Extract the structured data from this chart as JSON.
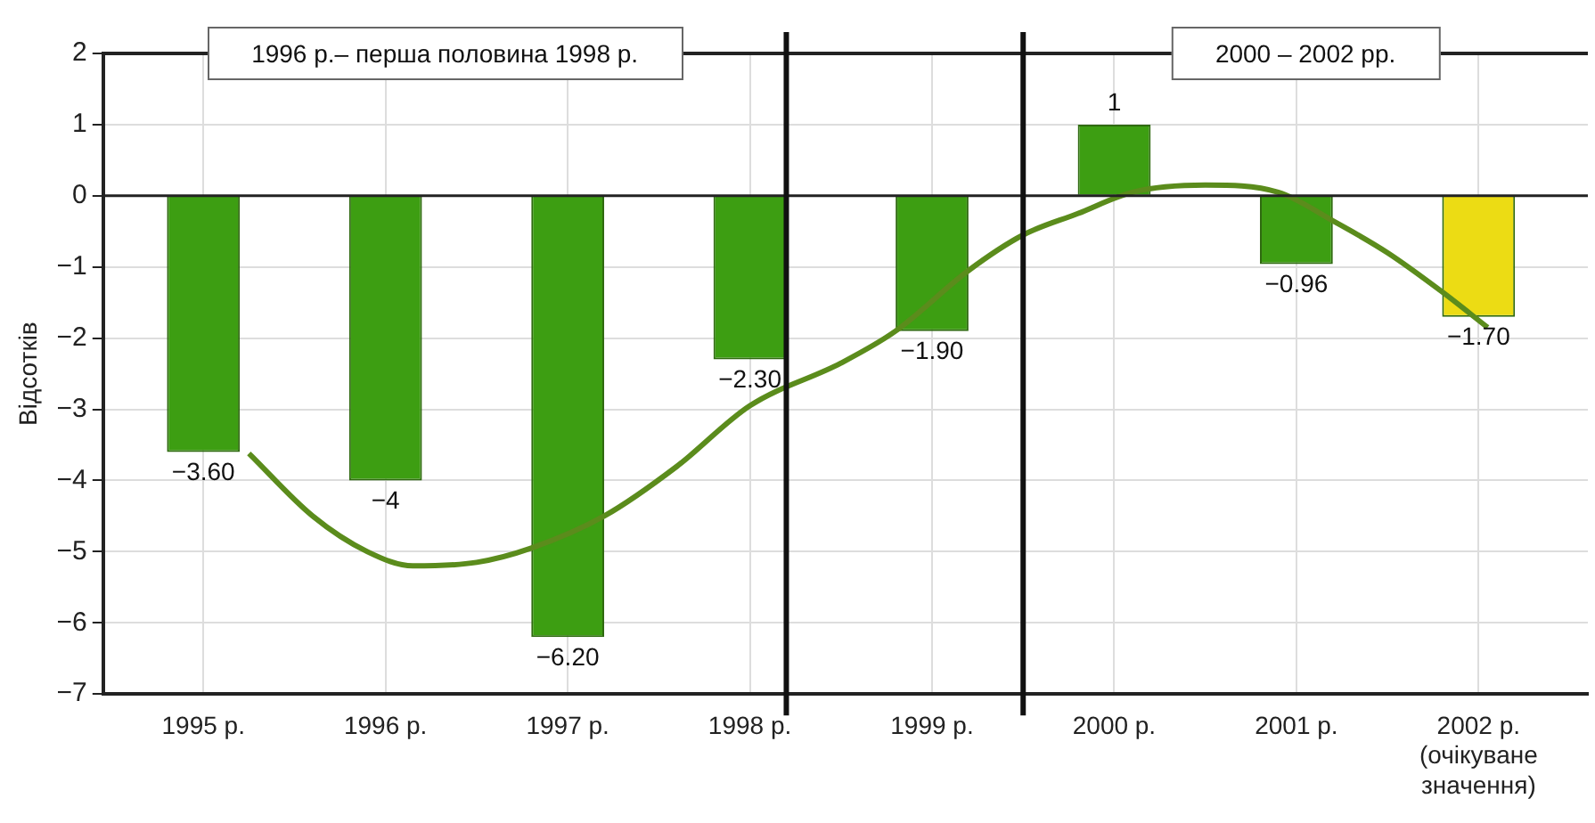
{
  "chart_data": {
    "type": "bar",
    "ylabel": "Відсотків",
    "x": [
      1995,
      1996,
      1997,
      1998,
      1999,
      2000,
      2001,
      2002
    ],
    "series": [
      {
        "colors": [
          "#3d9e12",
          "#3d9e12",
          "#3d9e12",
          "#3d9e12",
          "#3d9e12",
          "#3d9e12",
          "#3d9e12",
          "#ecdc14"
        ],
        "values": [
          -3.6,
          -4,
          -6.2,
          -2.3,
          -1.9,
          1,
          -0.96,
          -1.7
        ],
        "value_labels": [
          "−3.60",
          "−4",
          "−6.20",
          "−2.30",
          "−1.90",
          "1",
          "−0.96",
          "−1.70"
        ]
      },
      {
        "type": "line",
        "color": "#5b8c1c",
        "x": [
          1995.25,
          1995.6,
          1995.9,
          1996.15,
          1996.5,
          1996.8,
          1997.2,
          1997.6,
          1998,
          1998.5,
          1998.8,
          1999.2,
          1999.5,
          1999.8,
          2000.1,
          2000.5,
          2000.9,
          2001.2,
          2001.5,
          2001.8,
          2002.05
        ],
        "values": [
          -3.62,
          -4.5,
          -5.0,
          -5.2,
          -5.15,
          -4.95,
          -4.5,
          -3.8,
          -2.95,
          -2.35,
          -1.9,
          -1.05,
          -0.55,
          -0.25,
          0.05,
          0.15,
          0.05,
          -0.35,
          -0.8,
          -1.35,
          -1.85
        ]
      }
    ],
    "xlim": [
      1994.45,
      2002.6
    ],
    "xticks": [
      {
        "value": 1995,
        "label": "1995 р."
      },
      {
        "value": 1996,
        "label": "1996 р."
      },
      {
        "value": 1997,
        "label": "1997 р."
      },
      {
        "value": 1998,
        "label": "1998 р."
      },
      {
        "value": 1999,
        "label": "1999 р."
      },
      {
        "value": 2000,
        "label": "2000 р."
      },
      {
        "value": 2001,
        "label": "2001 р."
      },
      {
        "value": 2002,
        "label": "2002 р.\n(очікуване\nзначення)"
      }
    ],
    "ylim": [
      -7,
      2
    ],
    "yticks": [
      -7,
      -6,
      -5,
      -4,
      -3,
      -2,
      -1,
      0,
      1,
      2
    ],
    "grid": true,
    "ref_lines": [
      {
        "axis": "x",
        "value": 1998.2
      },
      {
        "axis": "x",
        "value": 1999.5
      }
    ],
    "annotations": [
      "1996 р.– перша половина 1998 р.",
      "2000 – 2002 рр."
    ]
  }
}
